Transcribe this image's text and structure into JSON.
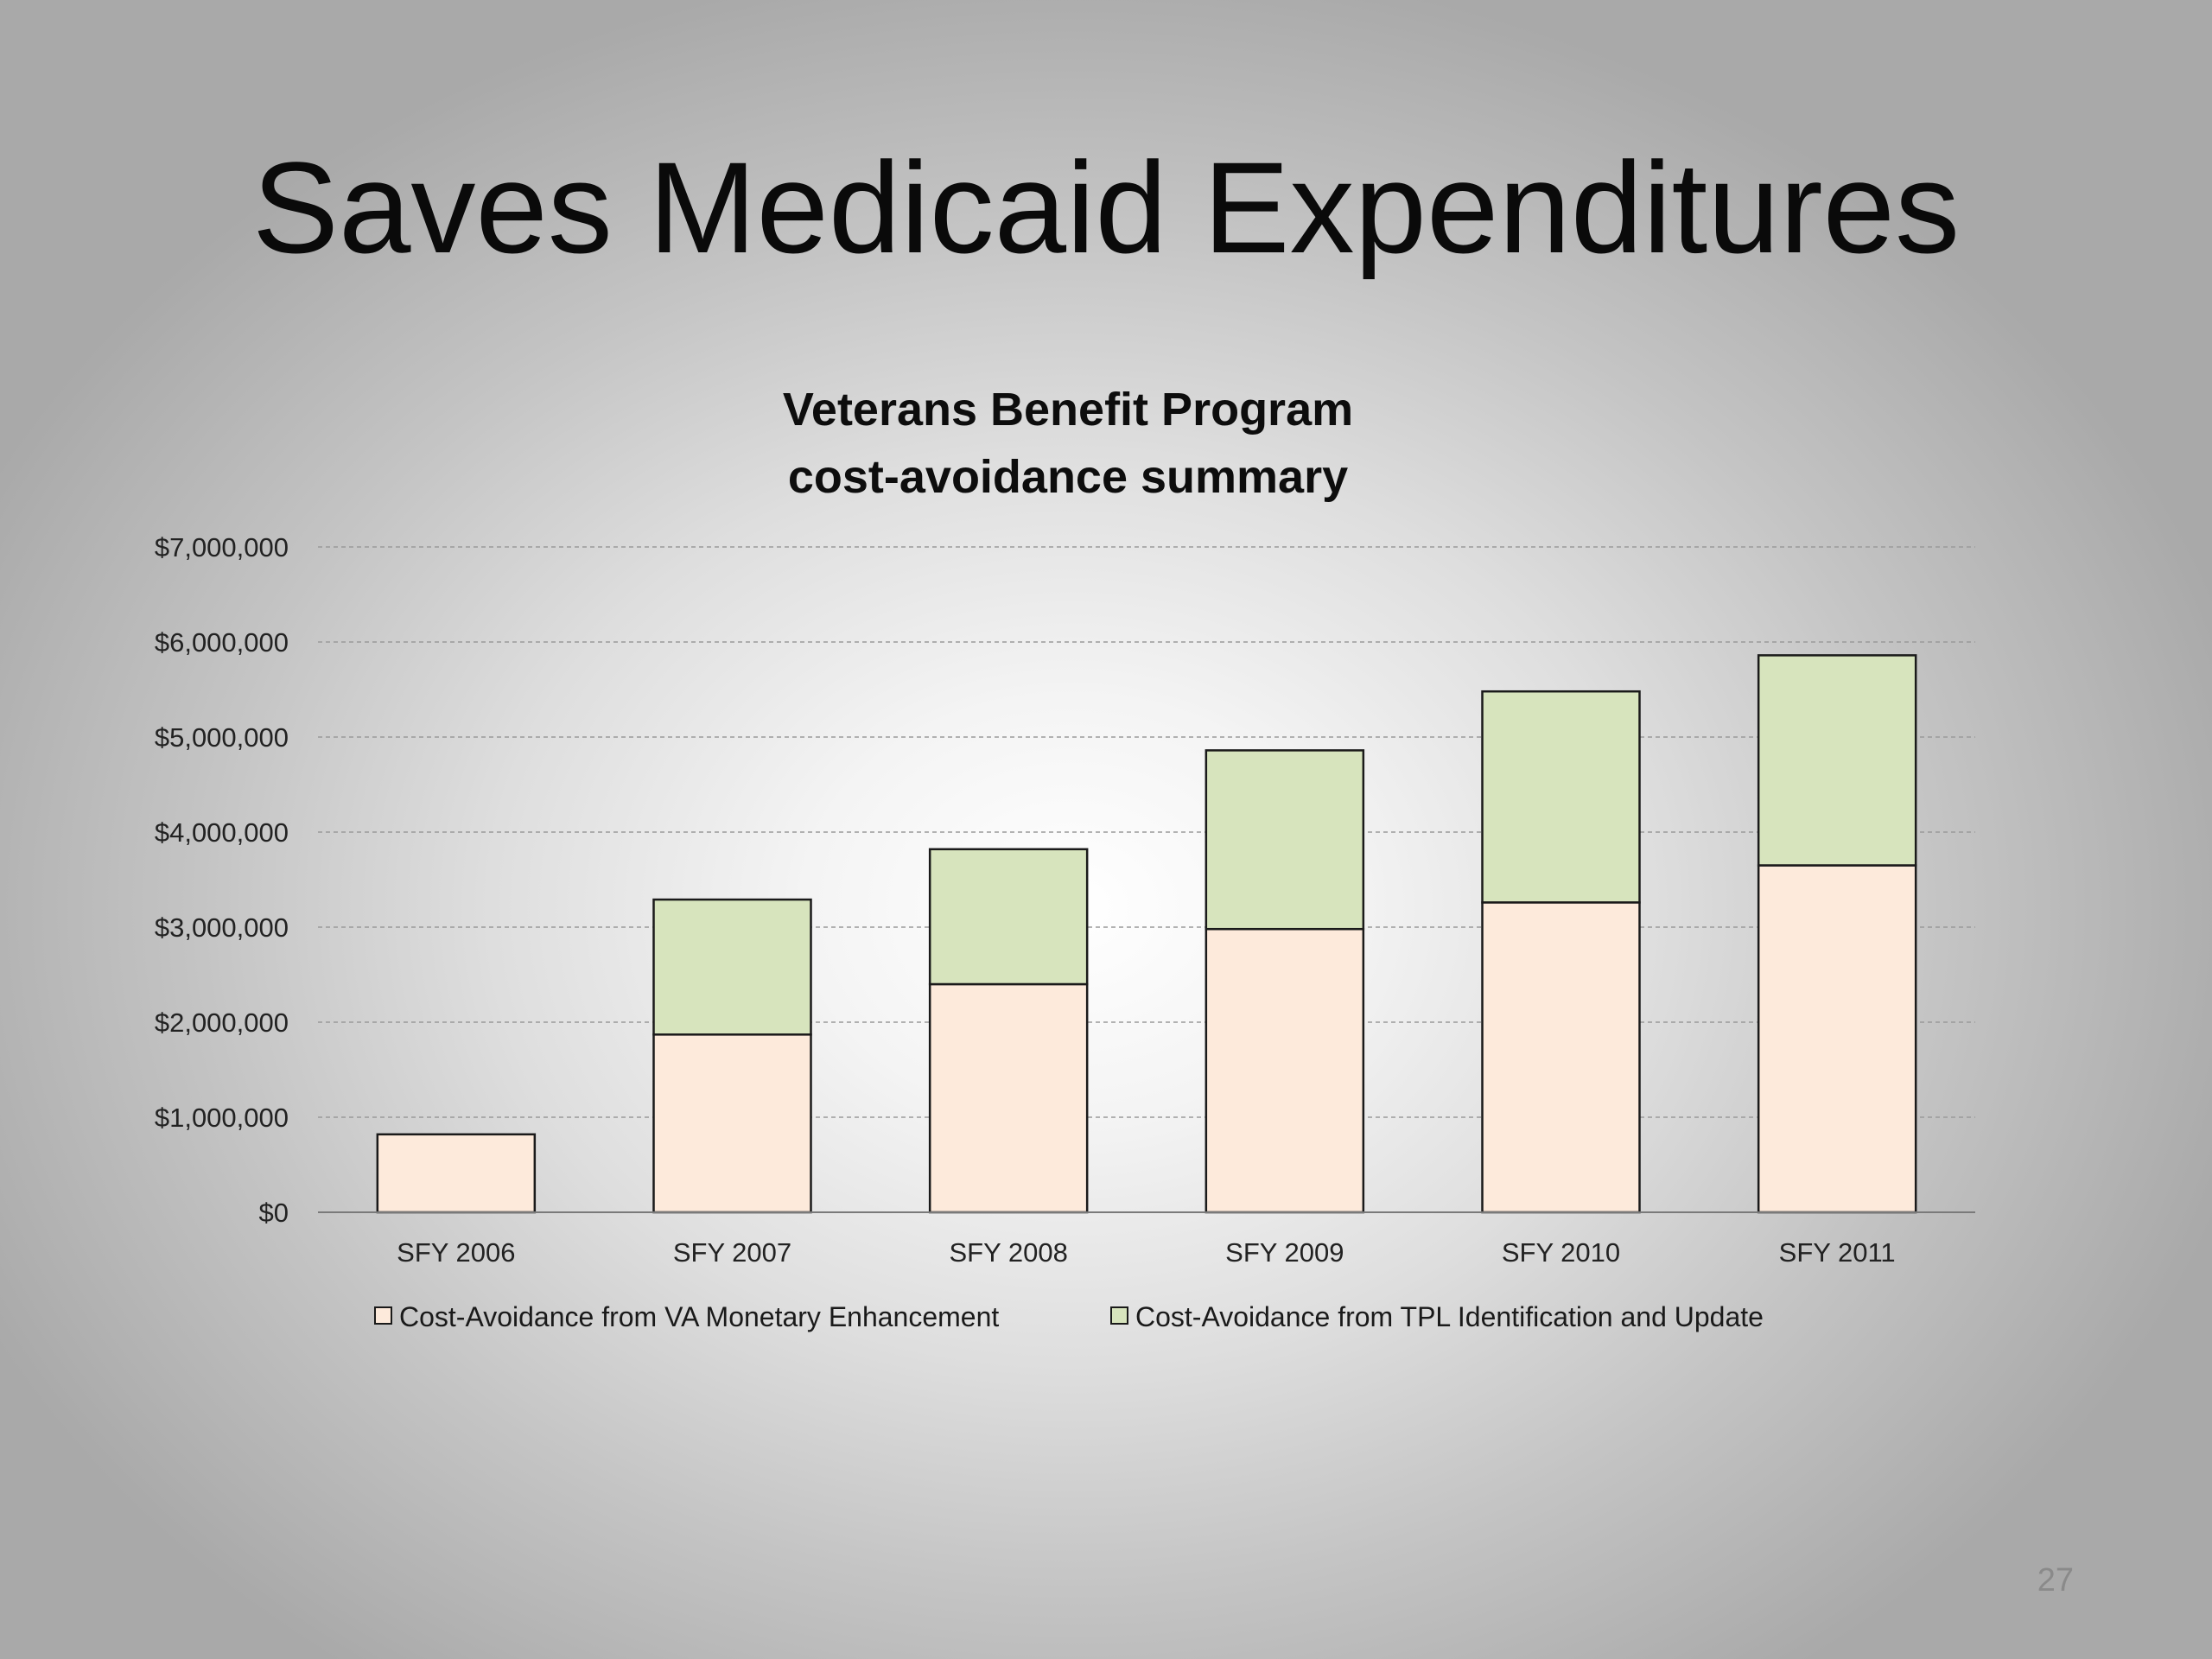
{
  "slide": {
    "title": "Saves Medicaid Expenditures",
    "page_number": "27"
  },
  "chart_data": {
    "type": "bar",
    "stacked": true,
    "title": [
      "Veterans Benefit Program",
      "cost-avoidance summary"
    ],
    "xlabel": "",
    "ylabel": "",
    "categories": [
      "SFY 2006",
      "SFY 2007",
      "SFY 2008",
      "SFY 2009",
      "SFY 2010",
      "SFY 2011"
    ],
    "series": [
      {
        "name": "Cost-Avoidance from VA Monetary Enhancement",
        "color": "#fdeadb",
        "values": [
          820000,
          1870000,
          2400000,
          2980000,
          3260000,
          3650000
        ]
      },
      {
        "name": "Cost-Avoidance from TPL Identification and Update",
        "color": "#d7e4bd",
        "values": [
          0,
          1420000,
          1420000,
          1880000,
          2220000,
          2210000
        ]
      }
    ],
    "ylim": [
      0,
      7000000
    ],
    "yticks": [
      "$0",
      "$1,000,000",
      "$2,000,000",
      "$3,000,000",
      "$4,000,000",
      "$5,000,000",
      "$6,000,000",
      "$7,000,000"
    ],
    "grid": true,
    "legend_position": "bottom"
  }
}
